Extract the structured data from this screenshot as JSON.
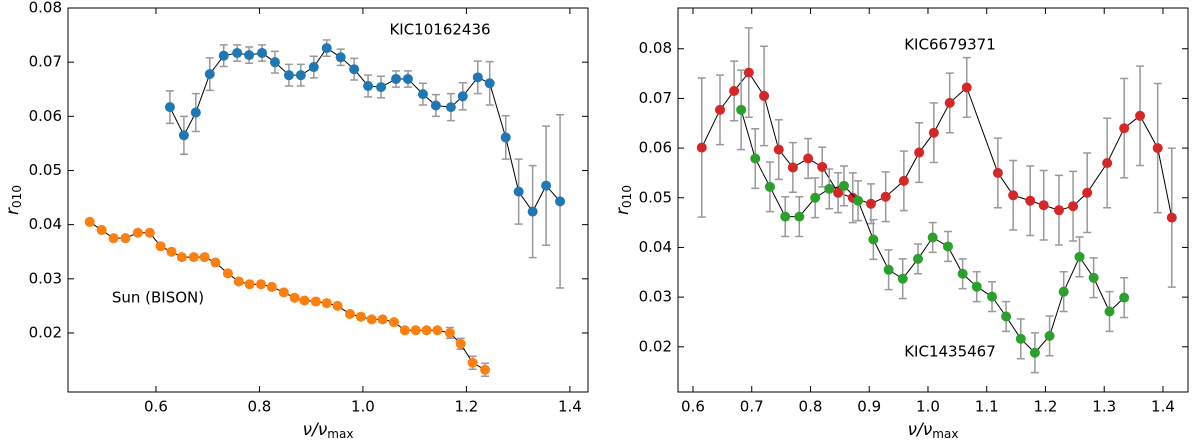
{
  "chart_data": [
    {
      "type": "errorbar",
      "xlabel": [
        "ν/ν",
        "max"
      ],
      "ylabel": [
        "r",
        "010"
      ],
      "xlim": [
        0.43,
        1.435
      ],
      "ylim": [
        0.0091,
        0.08
      ],
      "xticks": [
        0.6,
        0.8,
        {
          "value": 1.0,
          "label": "1.0"
        },
        1.2,
        1.4
      ],
      "yticks": [
        0.02,
        0.03,
        0.04,
        0.05,
        0.06,
        0.07,
        0.08
      ],
      "series": [
        {
          "name": "KIC10162436",
          "color": "#1f77b4",
          "x": [
            0.627,
            0.654,
            0.677,
            0.704,
            0.731,
            0.757,
            0.78,
            0.805,
            0.83,
            0.857,
            0.88,
            0.905,
            0.93,
            0.957,
            0.983,
            1.01,
            1.035,
            1.064,
            1.087,
            1.116,
            1.141,
            1.17,
            1.193,
            1.222,
            1.245,
            1.276,
            1.301,
            1.328,
            1.354,
            1.381
          ],
          "values": [
            0.0617,
            0.0565,
            0.0607,
            0.0678,
            0.0712,
            0.0717,
            0.0713,
            0.0717,
            0.07,
            0.0676,
            0.0676,
            0.0691,
            0.0726,
            0.0709,
            0.0687,
            0.0656,
            0.0654,
            0.0669,
            0.0669,
            0.0641,
            0.062,
            0.0617,
            0.0637,
            0.0672,
            0.0661,
            0.0561,
            0.0461,
            0.0424,
            0.0472,
            0.0443
          ],
          "errors": [
            0.003,
            0.0035,
            0.0035,
            0.003,
            0.002,
            0.0015,
            0.0015,
            0.0015,
            0.002,
            0.002,
            0.002,
            0.002,
            0.0015,
            0.0015,
            0.002,
            0.002,
            0.002,
            0.0015,
            0.0015,
            0.002,
            0.002,
            0.0025,
            0.0025,
            0.003,
            0.004,
            0.004,
            0.006,
            0.0085,
            0.011,
            0.016
          ]
        },
        {
          "name": "Sun (BISON)",
          "color": "#ff7f0e",
          "x": [
            0.472,
            0.495,
            0.518,
            0.541,
            0.565,
            0.588,
            0.609,
            0.63,
            0.65,
            0.673,
            0.694,
            0.715,
            0.739,
            0.76,
            0.781,
            0.803,
            0.824,
            0.847,
            0.868,
            0.887,
            0.909,
            0.93,
            0.951,
            0.975,
            0.996,
            1.017,
            1.038,
            1.06,
            1.081,
            1.102,
            1.123,
            1.144,
            1.168,
            1.189,
            1.212,
            1.236
          ],
          "values": [
            0.0405,
            0.039,
            0.0375,
            0.0375,
            0.0385,
            0.0385,
            0.036,
            0.035,
            0.034,
            0.034,
            0.034,
            0.033,
            0.031,
            0.0295,
            0.029,
            0.029,
            0.0285,
            0.0275,
            0.0265,
            0.026,
            0.0258,
            0.0255,
            0.025,
            0.0235,
            0.023,
            0.0225,
            0.0225,
            0.022,
            0.0205,
            0.0205,
            0.0205,
            0.0205,
            0.02,
            0.018,
            0.0145,
            0.0132
          ],
          "errors": [
            0.0005,
            0.0005,
            0.0005,
            0.0005,
            0.0005,
            0.0005,
            0.0005,
            0.0005,
            0.0005,
            0.0005,
            0.0005,
            0.0005,
            0.0005,
            0.0005,
            0.0005,
            0.0005,
            0.0005,
            0.0005,
            0.0005,
            0.0005,
            0.0005,
            0.0005,
            0.0005,
            0.0005,
            0.0005,
            0.0005,
            0.0005,
            0.0005,
            0.0005,
            0.0005,
            0.0005,
            0.0005,
            0.001,
            0.001,
            0.0012,
            0.0012
          ]
        }
      ]
    },
    {
      "type": "errorbar",
      "xlabel": [
        "ν/ν",
        "max"
      ],
      "ylabel": [
        "r",
        "010"
      ],
      "xlim": [
        0.5745,
        1.4426
      ],
      "ylim": [
        0.0109,
        0.0882
      ],
      "xticks": [
        0.6,
        0.7,
        0.8,
        0.9,
        {
          "value": 1.0,
          "label": "1.0"
        },
        1.1,
        1.2,
        1.3,
        1.4
      ],
      "yticks": [
        0.02,
        0.03,
        0.04,
        0.05,
        0.06,
        0.07,
        0.08
      ],
      "series": [
        {
          "name": "KIC6679371",
          "color": "#d62728",
          "x": [
            0.615,
            0.646,
            0.67,
            0.695,
            0.721,
            0.746,
            0.77,
            0.796,
            0.82,
            0.847,
            0.872,
            0.903,
            0.928,
            0.959,
            0.985,
            1.01,
            1.037,
            1.066,
            1.119,
            1.145,
            1.174,
            1.197,
            1.223,
            1.247,
            1.271,
            1.305,
            1.334,
            1.361,
            1.391,
            1.415
          ],
          "values": [
            0.0601,
            0.0677,
            0.0715,
            0.0752,
            0.0705,
            0.0597,
            0.0561,
            0.0579,
            0.0562,
            0.051,
            0.05,
            0.0488,
            0.0502,
            0.0534,
            0.0591,
            0.0631,
            0.0691,
            0.0722,
            0.055,
            0.0505,
            0.0494,
            0.0485,
            0.0475,
            0.0483,
            0.051,
            0.057,
            0.064,
            0.0665,
            0.06,
            0.046
          ],
          "errors": [
            0.014,
            0.007,
            0.006,
            0.009,
            0.01,
            0.006,
            0.005,
            0.004,
            0.004,
            0.004,
            0.005,
            0.004,
            0.005,
            0.006,
            0.006,
            0.006,
            0.006,
            0.006,
            0.007,
            0.007,
            0.007,
            0.007,
            0.007,
            0.007,
            0.008,
            0.009,
            0.01,
            0.01,
            0.013,
            0.014
          ]
        },
        {
          "name": "KIC1435467",
          "color": "#2ca02c",
          "x": [
            0.682,
            0.706,
            0.731,
            0.757,
            0.781,
            0.808,
            0.832,
            0.857,
            0.881,
            0.907,
            0.933,
            0.957,
            0.983,
            1.008,
            1.034,
            1.059,
            1.083,
            1.109,
            1.133,
            1.158,
            1.182,
            1.207,
            1.231,
            1.258,
            1.282,
            1.309,
            1.334
          ],
          "values": [
            0.0677,
            0.0579,
            0.0522,
            0.0462,
            0.0462,
            0.05,
            0.0518,
            0.0524,
            0.0494,
            0.0416,
            0.0355,
            0.0337,
            0.0377,
            0.042,
            0.0402,
            0.0347,
            0.0321,
            0.0301,
            0.0261,
            0.0216,
            0.0188,
            0.0222,
            0.0311,
            0.0381,
            0.0339,
            0.0271,
            0.0299
          ],
          "errors": [
            0.008,
            0.006,
            0.005,
            0.004,
            0.004,
            0.004,
            0.004,
            0.004,
            0.004,
            0.004,
            0.004,
            0.004,
            0.003,
            0.003,
            0.003,
            0.003,
            0.003,
            0.003,
            0.003,
            0.004,
            0.004,
            0.004,
            0.004,
            0.004,
            0.004,
            0.004,
            0.004
          ]
        }
      ]
    }
  ]
}
